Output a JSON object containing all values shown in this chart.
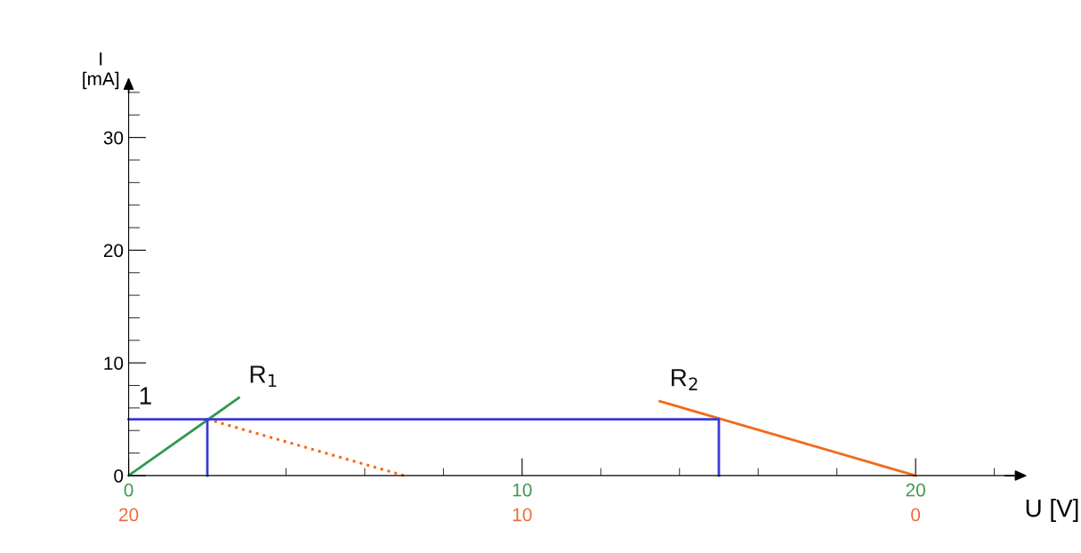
{
  "chart_data": {
    "type": "line",
    "xlabel": "U [V]",
    "ylabel": "I\n[mA]",
    "xlim": [
      0,
      22.5
    ],
    "ylim": [
      0,
      34.3
    ],
    "xticks": [
      0,
      10,
      20
    ],
    "yticks": [
      0,
      10,
      20,
      30
    ],
    "x2lim": [
      20,
      -2.5
    ],
    "x2ticks": [
      20,
      10,
      0
    ],
    "series": [
      {
        "name": "R$_{1}$",
        "color": "#2e9a4a",
        "x": [
          0,
          2.8
        ],
        "values": [
          0,
          6.9
        ]
      },
      {
        "name": "R$_{2}$",
        "color": "#f26a1b",
        "x": [
          13.5,
          20
        ],
        "values": [
          6.6,
          0
        ]
      },
      {
        "color": "#f26a1b",
        "x": [
          2,
          7
        ],
        "values": [
          5,
          0
        ],
        "line_style": "dotted"
      },
      {
        "name": "1",
        "color": "#3a3ad8",
        "x": [
          0,
          15,
          15
        ],
        "values": [
          5,
          5,
          0
        ]
      },
      {
        "color": "#3a3ad8",
        "x": [
          2,
          2
        ],
        "values": [
          0,
          5
        ]
      }
    ],
    "grid": false,
    "legend": false,
    "marker": "none",
    "line_style": "solid"
  }
}
